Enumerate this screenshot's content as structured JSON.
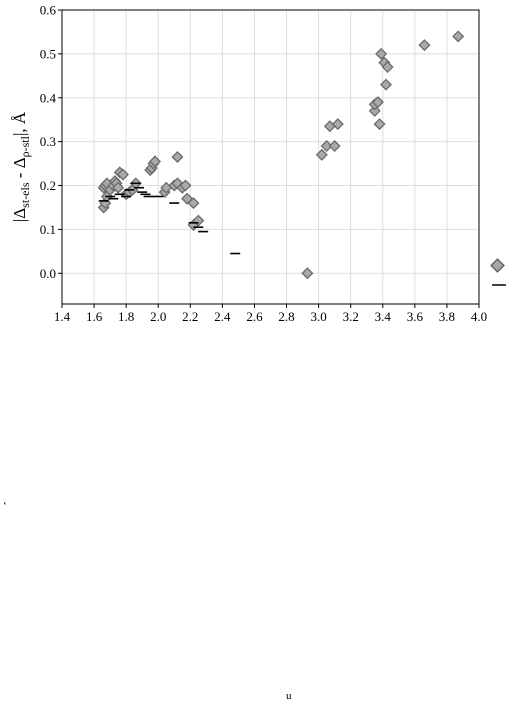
{
  "chart_data": {
    "type": "scatter",
    "ylabel_parts": {
      "bar_left": "|",
      "delta1": "Δ",
      "sub1": "st-els",
      "minus": " - ",
      "delta2": "Δ",
      "sub2": "ρ-stl",
      "bar_right": "|",
      "unit": ", Å"
    },
    "xlim": [
      1.4,
      4.0
    ],
    "ylim": [
      -0.07,
      0.6
    ],
    "x_ticks": [
      "1.4",
      "1.6",
      "1.8",
      "2.0",
      "2.2",
      "2.4",
      "2.6",
      "2.8",
      "3.0",
      "3.2",
      "3.4",
      "3.6",
      "3.8",
      "4.0"
    ],
    "y_ticks": [
      "0.0",
      "0.1",
      "0.2",
      "0.3",
      "0.4",
      "0.5",
      "0.6"
    ],
    "grid": true,
    "legend": "right, partially cropped",
    "series": [
      {
        "marker": "diamond",
        "color": "#a9a9a9",
        "points": [
          [
            1.66,
            0.15
          ],
          [
            1.67,
            0.16
          ],
          [
            1.68,
            0.175
          ],
          [
            1.66,
            0.195
          ],
          [
            1.67,
            0.2
          ],
          [
            1.68,
            0.205
          ],
          [
            1.7,
            0.19
          ],
          [
            1.72,
            0.2
          ],
          [
            1.73,
            0.21
          ],
          [
            1.74,
            0.205
          ],
          [
            1.75,
            0.195
          ],
          [
            1.76,
            0.23
          ],
          [
            1.78,
            0.225
          ],
          [
            1.8,
            0.18
          ],
          [
            1.82,
            0.185
          ],
          [
            1.84,
            0.19
          ],
          [
            1.86,
            0.205
          ],
          [
            1.95,
            0.235
          ],
          [
            1.96,
            0.24
          ],
          [
            1.97,
            0.25
          ],
          [
            1.98,
            0.255
          ],
          [
            2.04,
            0.185
          ],
          [
            2.05,
            0.195
          ],
          [
            2.1,
            0.2
          ],
          [
            2.12,
            0.205
          ],
          [
            2.12,
            0.265
          ],
          [
            2.15,
            0.195
          ],
          [
            2.17,
            0.2
          ],
          [
            2.18,
            0.17
          ],
          [
            2.22,
            0.16
          ],
          [
            2.22,
            0.11
          ],
          [
            2.25,
            0.12
          ],
          [
            2.93,
            0.0
          ],
          [
            3.02,
            0.27
          ],
          [
            3.05,
            0.29
          ],
          [
            3.07,
            0.335
          ],
          [
            3.1,
            0.29
          ],
          [
            3.12,
            0.34
          ],
          [
            3.35,
            0.37
          ],
          [
            3.35,
            0.385
          ],
          [
            3.37,
            0.39
          ],
          [
            3.38,
            0.34
          ],
          [
            3.39,
            0.5
          ],
          [
            3.41,
            0.48
          ],
          [
            3.42,
            0.43
          ],
          [
            3.43,
            0.47
          ],
          [
            3.66,
            0.52
          ],
          [
            3.87,
            0.54
          ]
        ]
      },
      {
        "marker": "dash",
        "color": "#000000",
        "points": [
          [
            1.66,
            0.165
          ],
          [
            1.7,
            0.175
          ],
          [
            1.72,
            0.17
          ],
          [
            1.76,
            0.18
          ],
          [
            1.8,
            0.175
          ],
          [
            1.82,
            0.19
          ],
          [
            1.86,
            0.205
          ],
          [
            1.88,
            0.195
          ],
          [
            1.9,
            0.185
          ],
          [
            1.92,
            0.18
          ],
          [
            1.94,
            0.175
          ],
          [
            2.0,
            0.175
          ],
          [
            2.1,
            0.16
          ],
          [
            2.22,
            0.115
          ],
          [
            2.25,
            0.105
          ],
          [
            2.28,
            0.095
          ],
          [
            2.48,
            0.045
          ]
        ]
      }
    ]
  },
  "stray_marks": {
    "left": "‘",
    "bottom": "u"
  }
}
